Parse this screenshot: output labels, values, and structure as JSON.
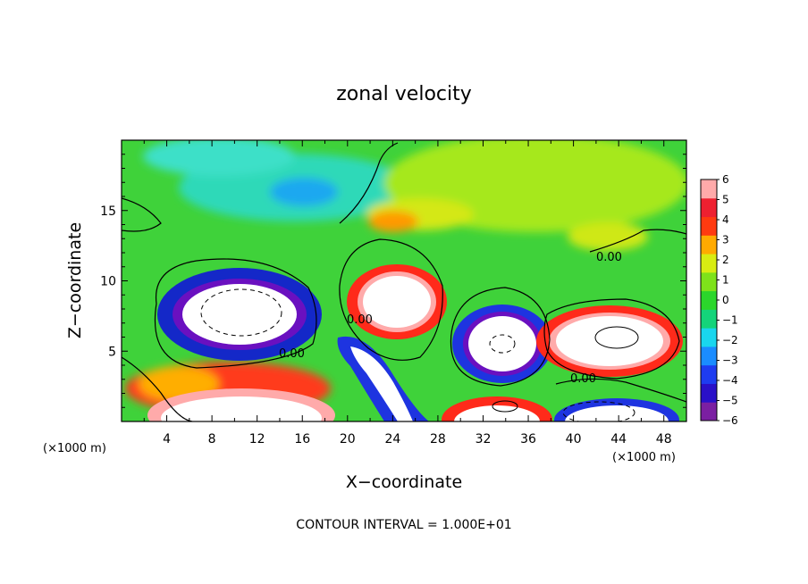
{
  "chart_data": {
    "type": "heatmap",
    "title": "zonal velocity",
    "xlabel": "X−coordinate",
    "ylabel": "Z−coordinate",
    "x_units": "(×1000 m)",
    "xlim": [
      0,
      50
    ],
    "ylim": [
      0,
      20
    ],
    "x_ticks": [
      "4",
      "8",
      "12",
      "16",
      "20",
      "24",
      "28",
      "32",
      "36",
      "40",
      "44",
      "48"
    ],
    "y_ticks": [
      "5",
      "10",
      "15"
    ],
    "colorbar": {
      "range": [
        -6,
        6
      ],
      "ticks": [
        "6",
        "5",
        "4",
        "3",
        "2",
        "1",
        "0",
        "−1",
        "−2",
        "−3",
        "−4",
        "−5",
        "−6"
      ],
      "colors": [
        "#7b1fa2",
        "#2a10c8",
        "#1e3cf0",
        "#1a8cff",
        "#19d6ee",
        "#14d47a",
        "#2bd62b",
        "#7ee21a",
        "#d8ec12",
        "#ffaa00",
        "#ff3a10",
        "#ee2030",
        "#ffaaaa"
      ]
    },
    "contour_labels": [
      "0.00",
      "0.00",
      "0.00",
      "0.00"
    ],
    "note": "CONTOUR INTERVAL = 1.000E+01"
  }
}
